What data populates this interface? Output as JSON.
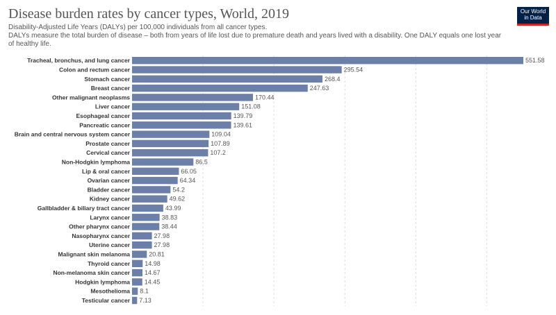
{
  "header": {
    "title": "Disease burden rates by cancer types, World, 2019",
    "subtitle_line1": "Disability-Adjusted Life Years (DALYs) per 100,000 individuals from all cancer types.",
    "subtitle_line2": "DALYs measure the total burden of disease – both from years of life lost due to premature death and years lived with a disability. One DALY equals one lost year of healthy life."
  },
  "logo": {
    "line1": "Our World",
    "line2": "in Data"
  },
  "colors": {
    "bar": "#6b7fa8",
    "logo_bg": "#002147",
    "logo_accent": "#ce261e"
  },
  "chart_data": {
    "type": "bar",
    "orientation": "horizontal",
    "title": "Disease burden rates by cancer types, World, 2019",
    "xlim": [
      0,
      560
    ],
    "grid": true,
    "categories": [
      "Tracheal, bronchus, and lung cancer",
      "Colon and rectum cancer",
      "Stomach cancer",
      "Breast cancer",
      "Other malignant neoplasms",
      "Liver cancer",
      "Esophageal cancer",
      "Pancreatic cancer",
      "Brain and central nervous system cancer",
      "Prostate cancer",
      "Cervical cancer",
      "Non-Hodgkin lymphoma",
      "Lip & oral cancer",
      "Ovarian cancer",
      "Bladder cancer",
      "Kidney cancer",
      "Gallbladder & biliary tract cancer",
      "Larynx cancer",
      "Other pharynx cancer",
      "Nasopharynx cancer",
      "Uterine cancer",
      "Malignant skin melanoma",
      "Thyroid cancer",
      "Non-melanoma skin cancer",
      "Hodgkin lymphoma",
      "Mesothelioma",
      "Testicular cancer"
    ],
    "values": [
      551.58,
      295.54,
      268.4,
      247.63,
      170.44,
      151.08,
      139.79,
      139.61,
      109.04,
      107.89,
      107.2,
      86.5,
      66.05,
      64.34,
      54.2,
      49.62,
      43.99,
      38.83,
      38.44,
      27.98,
      27.98,
      20.81,
      14.98,
      14.67,
      14.45,
      8.1,
      7.13
    ],
    "value_labels": [
      "551.58",
      "295.54",
      "268.4",
      "247.63",
      "170.44",
      "151.08",
      "139.79",
      "139.61",
      "109.04",
      "107.89",
      "107.2",
      "86.5",
      "66.05",
      "64.34",
      "54.2",
      "49.62",
      "43.99",
      "38.83",
      "38.44",
      "27.98",
      "27.98",
      "20.81",
      "14.98",
      "14.67",
      "14.45",
      "8.1",
      "7.13"
    ]
  }
}
